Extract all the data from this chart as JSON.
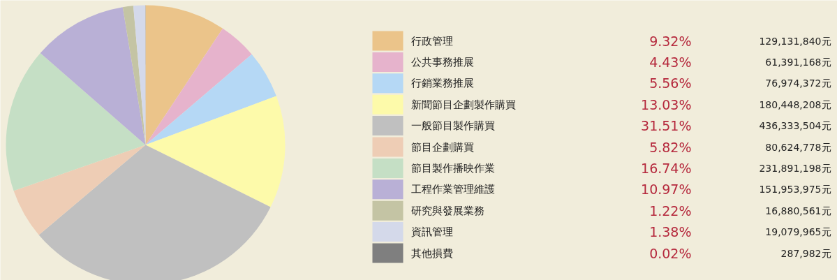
{
  "chart_data": {
    "type": "pie",
    "categories": [
      "行政管理",
      "公共事務推展",
      "行銷業務推展",
      "新聞節目企劃製作購買",
      "一般節目製作購買",
      "節目企劃購買",
      "節目製作播映作業",
      "工程作業管理維護",
      "研究與發展業務",
      "資訊管理",
      "其他損費"
    ],
    "values": [
      129131840,
      61391168,
      76974372,
      180448208,
      436333504,
      80624778,
      231891198,
      151953975,
      16880561,
      19079965,
      287982
    ],
    "value_labels": [
      "129,131,840元",
      "61,391,168元",
      "76,974,372元",
      "180,448,208元",
      "436,333,504元",
      "80,624,778元",
      "231,891,198元",
      "151,953,975元",
      "16,880,561元",
      "19,079,965元",
      "287,982元"
    ],
    "annotations": [
      "9.32%",
      "4.43%",
      "5.56%",
      "13.03%",
      "31.51%",
      "5.82%",
      "16.74%",
      "10.97%",
      "1.22%",
      "1.38%",
      "0.02%"
    ],
    "colors": [
      "#ebc48a",
      "#e6b3cc",
      "#b5d8f5",
      "#fdfaaa",
      "#c0c0c0",
      "#eecdb5",
      "#c5dfc5",
      "#b9b0d6",
      "#c4c4a4",
      "#d4d9ea",
      "#7f7f7f"
    ],
    "legend": "right"
  }
}
